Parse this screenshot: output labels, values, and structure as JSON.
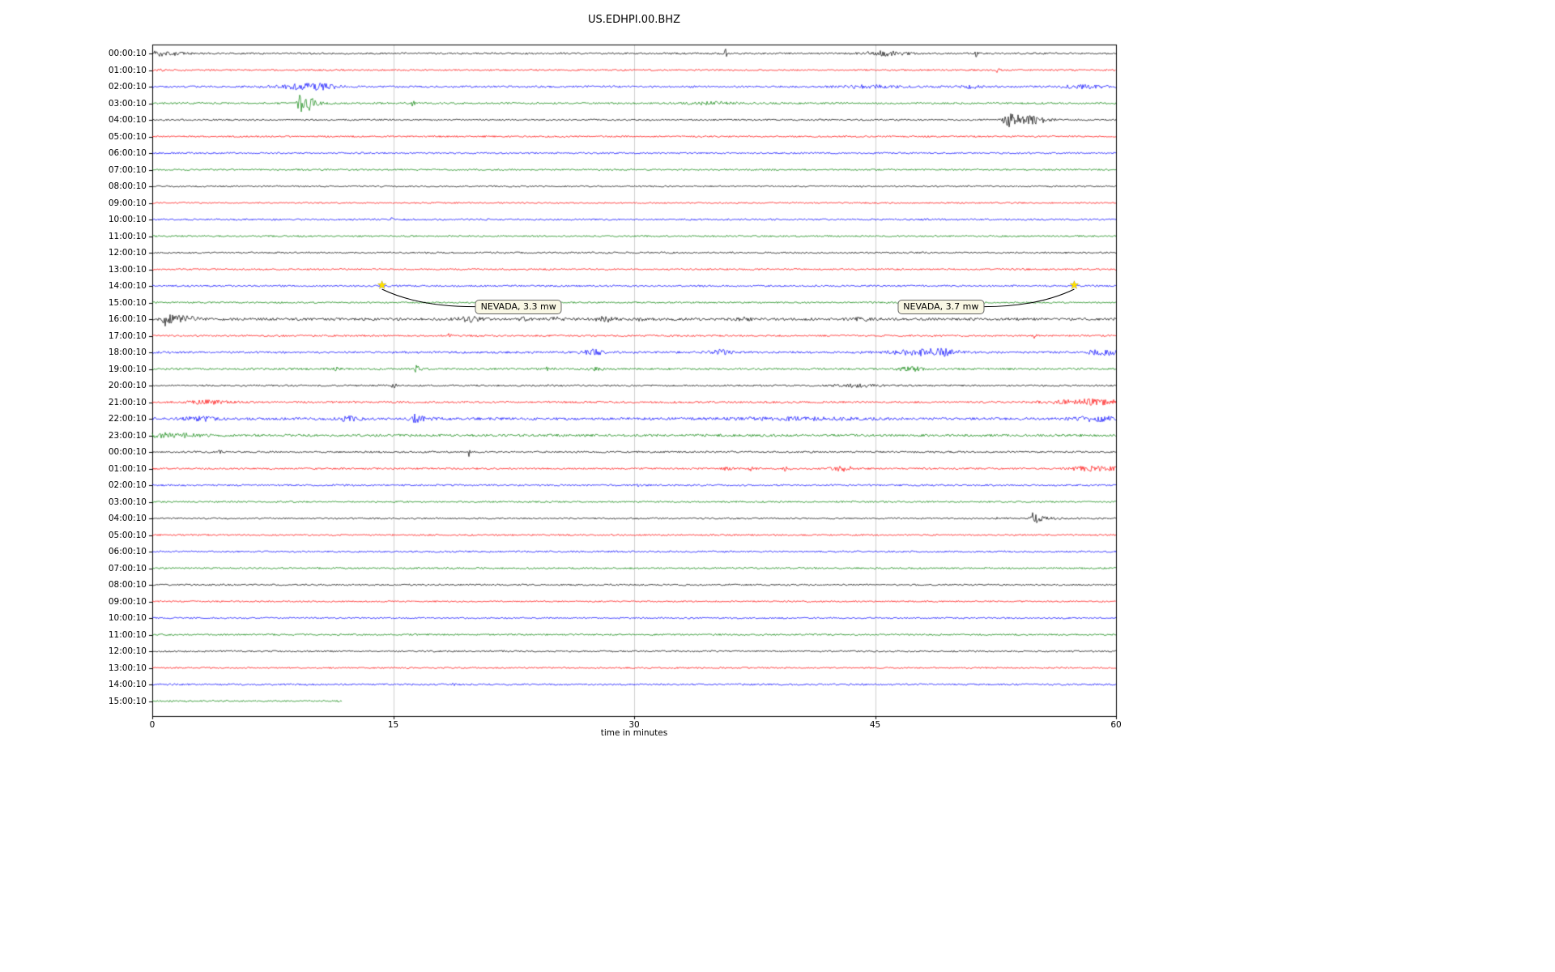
{
  "chart_data": {
    "type": "seismogram",
    "title": "US.EDHPI.00.BHZ",
    "xlabel": "time in minutes",
    "xlim": [
      0,
      60
    ],
    "xticks": [
      0,
      15,
      30,
      45,
      60
    ],
    "grid": "vertical-dividers-at-15-30-45",
    "trace_colors_cycle": [
      "#000000",
      "#ff0000",
      "#0000ff",
      "#008000"
    ],
    "star_color": "#ffe000",
    "rows": [
      {
        "label": "00:00:10",
        "color": "#000000",
        "amp": 1.1,
        "events": [
          {
            "x": 0.6,
            "amp": 2.6,
            "w": 0.9,
            "shape": "band"
          },
          {
            "x": 35.7,
            "amp": 7,
            "w": 0.1,
            "shape": "spike"
          },
          {
            "x": 45.6,
            "amp": 2.5,
            "w": 0.9,
            "shape": "band"
          },
          {
            "x": 51.3,
            "amp": 5,
            "w": 0.08,
            "shape": "spike"
          }
        ]
      },
      {
        "label": "01:00:10",
        "color": "#ff0000",
        "amp": 1.0,
        "events": [
          {
            "x": 0.4,
            "amp": 4.5,
            "w": 0.15,
            "shape": "spike"
          },
          {
            "x": 52.6,
            "amp": 2.6,
            "w": 0.12,
            "shape": "spike"
          }
        ]
      },
      {
        "label": "02:00:10",
        "color": "#0000ff",
        "amp": 1.2,
        "events": [
          {
            "x": 9.2,
            "amp": 2.6,
            "w": 1.1,
            "shape": "band"
          },
          {
            "x": 10.6,
            "amp": 2.2,
            "w": 0.7,
            "shape": "band"
          },
          {
            "x": 44.6,
            "amp": 1.8,
            "w": 1.2,
            "shape": "band"
          },
          {
            "x": 51.0,
            "amp": 2.0,
            "w": 0.35,
            "shape": "band"
          },
          {
            "x": 58.0,
            "amp": 2.4,
            "w": 0.8,
            "shape": "band"
          }
        ]
      },
      {
        "label": "03:00:10",
        "color": "#008000",
        "amp": 1.1,
        "events": [
          {
            "x": 9.2,
            "amp": 13,
            "w": 0.35,
            "shape": "spike"
          },
          {
            "x": 9.8,
            "amp": 7,
            "w": 0.3,
            "shape": "spike"
          },
          {
            "x": 16.2,
            "amp": 4,
            "w": 0.1,
            "shape": "spike"
          },
          {
            "x": 35.0,
            "amp": 1.6,
            "w": 1.2,
            "shape": "band"
          }
        ]
      },
      {
        "label": "04:00:10",
        "color": "#000000",
        "amp": 1.0,
        "events": [
          {
            "x": 53.2,
            "amp": 9,
            "w": 0.5,
            "shape": "spike"
          },
          {
            "x": 54.6,
            "amp": 5,
            "w": 0.8,
            "shape": "band"
          }
        ]
      },
      {
        "label": "05:00:10",
        "color": "#ff0000",
        "amp": 1.0,
        "events": []
      },
      {
        "label": "06:00:10",
        "color": "#0000ff",
        "amp": 1.05,
        "events": []
      },
      {
        "label": "07:00:10",
        "color": "#008000",
        "amp": 1.0,
        "events": []
      },
      {
        "label": "08:00:10",
        "color": "#000000",
        "amp": 0.95,
        "events": []
      },
      {
        "label": "09:00:10",
        "color": "#ff0000",
        "amp": 0.95,
        "events": []
      },
      {
        "label": "10:00:10",
        "color": "#0000ff",
        "amp": 1.1,
        "events": [
          {
            "x": 14.9,
            "amp": 1.6,
            "w": 0.1,
            "shape": "spike"
          }
        ]
      },
      {
        "label": "11:00:10",
        "color": "#008000",
        "amp": 1.0,
        "events": []
      },
      {
        "label": "12:00:10",
        "color": "#000000",
        "amp": 1.05,
        "events": []
      },
      {
        "label": "13:00:10",
        "color": "#ff0000",
        "amp": 1.0,
        "events": []
      },
      {
        "label": "14:00:10",
        "color": "#0000ff",
        "amp": 1.1,
        "events": [
          {
            "x": 14.3,
            "amp": 1.3,
            "w": 0.15,
            "shape": "spike"
          },
          {
            "x": 57.4,
            "amp": 1.3,
            "w": 0.15,
            "shape": "spike"
          }
        ]
      },
      {
        "label": "15:00:10",
        "color": "#008000",
        "amp": 1.0,
        "events": []
      },
      {
        "label": "16:00:10",
        "color": "#000000",
        "amp": 1.6,
        "events": [
          {
            "x": 0.8,
            "amp": 7,
            "w": 0.5,
            "shape": "spike"
          },
          {
            "x": 2.0,
            "amp": 2.6,
            "w": 0.6,
            "shape": "band"
          },
          {
            "x": 19.8,
            "amp": 2.6,
            "w": 0.5,
            "shape": "band"
          },
          {
            "x": 23.0,
            "amp": 2.6,
            "w": 0.3,
            "shape": "spike"
          },
          {
            "x": 25.2,
            "amp": 2.0,
            "w": 0.3,
            "shape": "band"
          },
          {
            "x": 28.2,
            "amp": 2.6,
            "w": 0.4,
            "shape": "band"
          },
          {
            "x": 30.3,
            "amp": 6,
            "w": 0.1,
            "shape": "spike"
          },
          {
            "x": 36.8,
            "amp": 2.0,
            "w": 0.3,
            "shape": "band"
          },
          {
            "x": 44.2,
            "amp": 1.8,
            "w": 0.5,
            "shape": "band"
          }
        ]
      },
      {
        "label": "17:00:10",
        "color": "#ff0000",
        "amp": 1.1,
        "events": [
          {
            "x": 18.4,
            "amp": 4,
            "w": 0.12,
            "shape": "spike"
          },
          {
            "x": 54.9,
            "amp": 3,
            "w": 0.12,
            "shape": "spike"
          }
        ]
      },
      {
        "label": "18:00:10",
        "color": "#0000ff",
        "amp": 1.3,
        "events": [
          {
            "x": 27.4,
            "amp": 3,
            "w": 0.5,
            "shape": "band"
          },
          {
            "x": 35.4,
            "amp": 2.4,
            "w": 0.5,
            "shape": "band"
          },
          {
            "x": 48.0,
            "amp": 3.2,
            "w": 1.4,
            "shape": "band"
          },
          {
            "x": 49.4,
            "amp": 2.6,
            "w": 0.6,
            "shape": "band"
          },
          {
            "x": 59.3,
            "amp": 3.2,
            "w": 0.7,
            "shape": "band"
          }
        ]
      },
      {
        "label": "19:00:10",
        "color": "#008000",
        "amp": 1.2,
        "events": [
          {
            "x": 11.4,
            "amp": 2.6,
            "w": 0.2,
            "shape": "spike"
          },
          {
            "x": 16.4,
            "amp": 4,
            "w": 0.25,
            "shape": "spike"
          },
          {
            "x": 24.6,
            "amp": 2.2,
            "w": 0.2,
            "shape": "spike"
          },
          {
            "x": 27.6,
            "amp": 1.8,
            "w": 0.3,
            "shape": "band"
          },
          {
            "x": 47.2,
            "amp": 2.8,
            "w": 0.5,
            "shape": "band"
          }
        ]
      },
      {
        "label": "20:00:10",
        "color": "#000000",
        "amp": 1.1,
        "events": [
          {
            "x": 15.0,
            "amp": 3.2,
            "w": 0.2,
            "shape": "spike"
          },
          {
            "x": 43.8,
            "amp": 1.6,
            "w": 1.0,
            "shape": "band"
          }
        ]
      },
      {
        "label": "21:00:10",
        "color": "#ff0000",
        "amp": 1.2,
        "events": [
          {
            "x": 3.5,
            "amp": 2.0,
            "w": 0.8,
            "shape": "band"
          },
          {
            "x": 58.5,
            "amp": 3.2,
            "w": 1.8,
            "shape": "band"
          }
        ]
      },
      {
        "label": "22:00:10",
        "color": "#0000ff",
        "amp": 1.6,
        "events": [
          {
            "x": 3.0,
            "amp": 2.6,
            "w": 0.6,
            "shape": "band"
          },
          {
            "x": 12.3,
            "amp": 2.4,
            "w": 0.5,
            "shape": "band"
          },
          {
            "x": 16.3,
            "amp": 5,
            "w": 0.6,
            "shape": "spike"
          },
          {
            "x": 40.0,
            "amp": 1.2,
            "w": 3.0,
            "shape": "band"
          },
          {
            "x": 58.8,
            "amp": 2.6,
            "w": 0.9,
            "shape": "band"
          }
        ]
      },
      {
        "label": "23:00:10",
        "color": "#008000",
        "amp": 1.5,
        "events": [
          {
            "x": 1.0,
            "amp": 2.6,
            "w": 1.2,
            "shape": "band"
          }
        ]
      },
      {
        "label": "00:00:10",
        "color": "#000000",
        "amp": 1.1,
        "events": [
          {
            "x": 4.2,
            "amp": 1.6,
            "w": 0.2,
            "shape": "spike"
          },
          {
            "x": 19.7,
            "amp": 9,
            "w": 0.12,
            "shape": "spike"
          }
        ]
      },
      {
        "label": "01:00:10",
        "color": "#ff0000",
        "amp": 1.1,
        "events": [
          {
            "x": 35.6,
            "amp": 2.6,
            "w": 0.3,
            "shape": "spike"
          },
          {
            "x": 37.2,
            "amp": 2.6,
            "w": 0.3,
            "shape": "spike"
          },
          {
            "x": 39.4,
            "amp": 2.4,
            "w": 0.3,
            "shape": "spike"
          },
          {
            "x": 43.0,
            "amp": 2.6,
            "w": 0.5,
            "shape": "band"
          },
          {
            "x": 58.6,
            "amp": 2.4,
            "w": 1.2,
            "shape": "band"
          }
        ]
      },
      {
        "label": "02:00:10",
        "color": "#0000ff",
        "amp": 1.1,
        "events": [
          {
            "x": 30.2,
            "amp": 1.3,
            "w": 0.2,
            "shape": "spike"
          }
        ]
      },
      {
        "label": "03:00:10",
        "color": "#008000",
        "amp": 1.0,
        "events": [
          {
            "x": 4.3,
            "amp": 2.8,
            "w": 0.12,
            "shape": "spike"
          }
        ]
      },
      {
        "label": "04:00:10",
        "color": "#000000",
        "amp": 1.0,
        "events": [
          {
            "x": 52.3,
            "amp": 2.0,
            "w": 0.2,
            "shape": "spike"
          },
          {
            "x": 54.8,
            "amp": 8,
            "w": 0.5,
            "shape": "spike"
          }
        ]
      },
      {
        "label": "05:00:10",
        "color": "#ff0000",
        "amp": 1.0,
        "events": []
      },
      {
        "label": "06:00:10",
        "color": "#0000ff",
        "amp": 1.05,
        "events": []
      },
      {
        "label": "07:00:10",
        "color": "#008000",
        "amp": 1.0,
        "events": []
      },
      {
        "label": "08:00:10",
        "color": "#000000",
        "amp": 1.0,
        "events": []
      },
      {
        "label": "09:00:10",
        "color": "#ff0000",
        "amp": 0.95,
        "events": []
      },
      {
        "label": "10:00:10",
        "color": "#0000ff",
        "amp": 1.0,
        "events": []
      },
      {
        "label": "11:00:10",
        "color": "#008000",
        "amp": 1.0,
        "events": []
      },
      {
        "label": "12:00:10",
        "color": "#000000",
        "amp": 1.0,
        "events": []
      },
      {
        "label": "13:00:10",
        "color": "#ff0000",
        "amp": 0.95,
        "events": []
      },
      {
        "label": "14:00:10",
        "color": "#0000ff",
        "amp": 1.1,
        "events": [
          {
            "x": 18.6,
            "amp": 1.3,
            "w": 0.2,
            "shape": "spike"
          }
        ]
      },
      {
        "label": "15:00:10",
        "color": "#008000",
        "amp": 1.0,
        "x_end": 11.8,
        "events": []
      }
    ],
    "annotations": [
      {
        "label": "NEVADA, 3.3 mw",
        "row": 14,
        "star_x": 14.3,
        "box_x": 22.8,
        "box_dy_rows": 1.25
      },
      {
        "label": "NEVADA, 3.7 mw",
        "row": 14,
        "star_x": 57.4,
        "box_x": 49.1,
        "box_dy_rows": 1.25
      }
    ]
  }
}
